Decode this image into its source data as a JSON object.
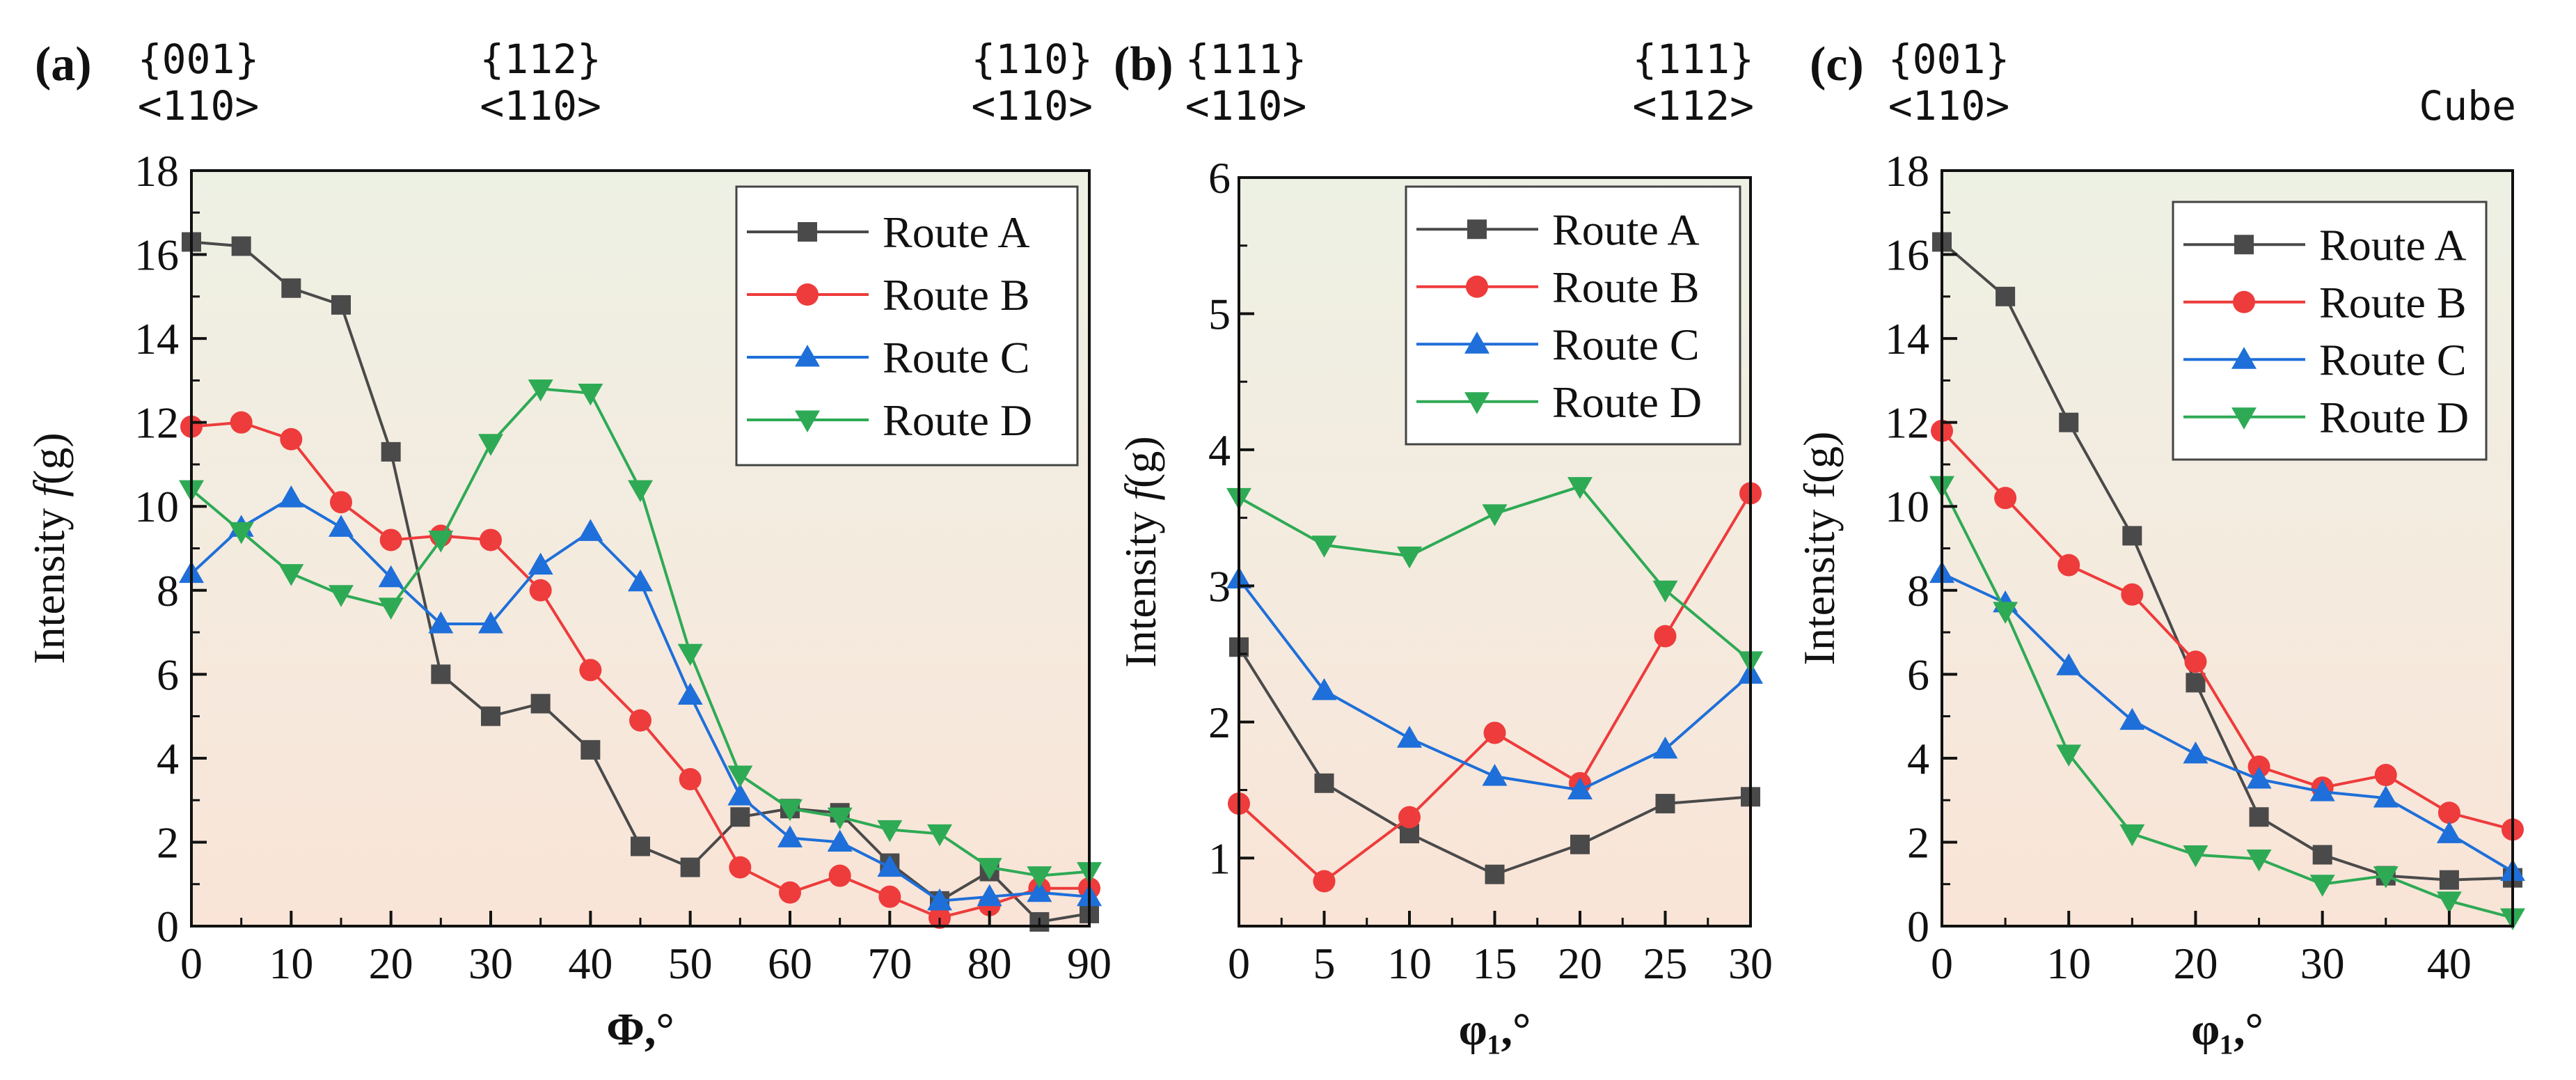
{
  "figure": {
    "description_free": true
  },
  "chart_data": [
    {
      "panel_label": "(a)",
      "type": "line",
      "xlabel": "Φ,°",
      "ylabel_prefix": "Intensity ",
      "ylabel_italic": "f",
      "ylabel_suffix": "(g)",
      "xlim": [
        0,
        90
      ],
      "ylim": [
        0,
        18
      ],
      "xticks": [
        0,
        10,
        20,
        30,
        40,
        50,
        60,
        70,
        80,
        90
      ],
      "yticks": [
        0,
        2,
        4,
        6,
        8,
        10,
        12,
        14,
        16,
        18
      ],
      "legend_position": "top-right",
      "orientation_labels": [
        {
          "x": 0,
          "line1": "{001}",
          "line2": "<110>"
        },
        {
          "x": 35,
          "line1": "{112}",
          "line2": "<110>"
        },
        {
          "x": 90,
          "line1": "{110}",
          "line2": "<110>"
        }
      ],
      "x": [
        0,
        5,
        10,
        15,
        20,
        25,
        30,
        35,
        40,
        45,
        50,
        55,
        60,
        65,
        70,
        75,
        80,
        85,
        90
      ],
      "series": [
        {
          "name": "Route A",
          "color": "#4a4a4a",
          "marker": "square",
          "values": [
            16.3,
            16.2,
            15.2,
            14.8,
            11.3,
            6.0,
            5.0,
            5.3,
            4.2,
            1.9,
            1.4,
            2.6,
            2.8,
            2.7,
            1.5,
            0.6,
            1.3,
            0.1,
            0.3
          ]
        },
        {
          "name": "Route B",
          "color": "#ee3b3b",
          "marker": "circle",
          "values": [
            11.9,
            12.0,
            11.6,
            10.1,
            9.2,
            9.3,
            9.2,
            8.0,
            6.1,
            4.9,
            3.5,
            1.4,
            0.8,
            1.2,
            0.7,
            0.2,
            0.5,
            0.9,
            0.9
          ]
        },
        {
          "name": "Route C",
          "color": "#1e6fd9",
          "marker": "triangle-up",
          "values": [
            8.4,
            9.5,
            10.2,
            9.5,
            8.3,
            7.2,
            7.2,
            8.6,
            9.4,
            8.2,
            5.5,
            3.1,
            2.1,
            2.0,
            1.4,
            0.6,
            0.7,
            0.8,
            0.7
          ]
        },
        {
          "name": "Route D",
          "color": "#2eaa55",
          "marker": "triangle-down",
          "values": [
            10.4,
            9.4,
            8.4,
            7.9,
            7.6,
            9.2,
            11.5,
            12.8,
            12.7,
            10.4,
            6.5,
            3.6,
            2.8,
            2.6,
            2.3,
            2.2,
            1.4,
            1.2,
            1.3
          ]
        }
      ]
    },
    {
      "panel_label": "(b)",
      "type": "line",
      "xlabel": "φ₁,°",
      "ylabel_prefix": "Intensity ",
      "ylabel_italic": "f",
      "ylabel_suffix": "(g)",
      "xlim": [
        0,
        30
      ],
      "ylim": [
        0.5,
        6
      ],
      "xticks": [
        0,
        5,
        10,
        15,
        20,
        25,
        30
      ],
      "yticks": [
        1,
        2,
        3,
        4,
        5,
        6
      ],
      "legend_position": "top-right",
      "orientation_labels": [
        {
          "x": 0,
          "line1": "{111}",
          "line2": "<110>"
        },
        {
          "x": 30,
          "line1": "{111}",
          "line2": "<112>"
        }
      ],
      "x": [
        0,
        5,
        10,
        15,
        20,
        25,
        30
      ],
      "series": [
        {
          "name": "Route A",
          "color": "#4a4a4a",
          "marker": "square",
          "values": [
            2.55,
            1.55,
            1.18,
            0.88,
            1.1,
            1.4,
            1.45
          ]
        },
        {
          "name": "Route B",
          "color": "#ee3b3b",
          "marker": "circle",
          "values": [
            1.4,
            0.83,
            1.3,
            1.92,
            1.55,
            2.63,
            3.68
          ]
        },
        {
          "name": "Route C",
          "color": "#1e6fd9",
          "marker": "triangle-up",
          "values": [
            3.05,
            2.23,
            1.88,
            1.6,
            1.5,
            1.8,
            2.35
          ]
        },
        {
          "name": "Route D",
          "color": "#2eaa55",
          "marker": "triangle-down",
          "values": [
            3.65,
            3.3,
            3.22,
            3.53,
            3.73,
            2.97,
            2.45
          ]
        }
      ]
    },
    {
      "panel_label": "(c)",
      "type": "line",
      "xlabel": "φ₁,°",
      "ylabel_prefix": "Intensity f(g)",
      "ylabel_italic": "",
      "ylabel_suffix": "",
      "xlim": [
        0,
        45
      ],
      "ylim": [
        0,
        18
      ],
      "xticks": [
        0,
        10,
        20,
        30,
        40
      ],
      "yticks": [
        0,
        2,
        4,
        6,
        8,
        10,
        12,
        14,
        16,
        18
      ],
      "legend_position": "top-right",
      "orientation_labels": [
        {
          "x": 0,
          "line1": "{001}",
          "line2": "<110>"
        },
        {
          "x": 45,
          "line1": "",
          "line2": "Cube"
        }
      ],
      "x": [
        0,
        5,
        10,
        15,
        20,
        25,
        30,
        35,
        40,
        45
      ],
      "series": [
        {
          "name": "Route A",
          "color": "#4a4a4a",
          "marker": "square",
          "values": [
            16.3,
            15.0,
            12.0,
            9.3,
            5.8,
            2.6,
            1.7,
            1.2,
            1.1,
            1.15
          ]
        },
        {
          "name": "Route B",
          "color": "#ee3b3b",
          "marker": "circle",
          "values": [
            11.8,
            10.2,
            8.6,
            7.9,
            6.3,
            3.8,
            3.3,
            3.6,
            2.7,
            2.3
          ]
        },
        {
          "name": "Route C",
          "color": "#1e6fd9",
          "marker": "triangle-up",
          "values": [
            8.4,
            7.7,
            6.2,
            4.9,
            4.1,
            3.5,
            3.2,
            3.05,
            2.2,
            1.3
          ]
        },
        {
          "name": "Route D",
          "color": "#2eaa55",
          "marker": "triangle-down",
          "values": [
            10.5,
            7.5,
            4.1,
            2.2,
            1.7,
            1.6,
            1.0,
            1.2,
            0.6,
            0.2
          ]
        }
      ]
    }
  ]
}
